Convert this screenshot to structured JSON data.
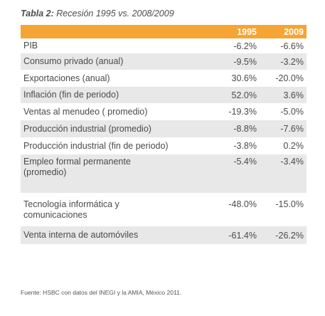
{
  "caption": {
    "label": "Tabla 2:",
    "text": " Recesión 1995 vs. 2008/2009"
  },
  "table": {
    "columns": [
      "",
      "1995",
      "2009"
    ],
    "rows": [
      {
        "label": "PIB",
        "v1995": "-6.2%",
        "v2009": "-6.6%"
      },
      {
        "label": "Consumo privado (anual)",
        "v1995": "-9.5%",
        "v2009": "-3.2%"
      },
      {
        "label": "Exportaciones (anual)",
        "v1995": "30.6%",
        "v2009": "-20.0%"
      },
      {
        "label": "Inflación (fin de periodo)",
        "v1995": "52.0%",
        "v2009": "3.6%"
      },
      {
        "label": "Ventas al menudeo ( promedio)",
        "v1995": "-19.3%",
        "v2009": "-5.0%"
      },
      {
        "label": "Producción industrial (promedio)",
        "v1995": "-8.8%",
        "v2009": "-7.6%"
      },
      {
        "label": "Producción industrial (fin de periodo)",
        "v1995": "-3.8%",
        "v2009": "0.2%"
      },
      {
        "label": "Empleo formal permanente (promedio)",
        "v1995": "-5.4%",
        "v2009": "-3.4%"
      },
      {
        "label": "Tecnología informática y comunicaciones",
        "v1995": "-48.0%",
        "v2009": "-15.0%"
      },
      {
        "label": "Venta interna de automóviles",
        "v1995": "-61.4%",
        "v2009": "-26.2%"
      }
    ]
  },
  "source": "Fuente: HSBC con datos del INEGI y la AMIA, México 2011.",
  "colors": {
    "header_bg": "#f6a433",
    "shaded_row": "#e8e8e8"
  }
}
